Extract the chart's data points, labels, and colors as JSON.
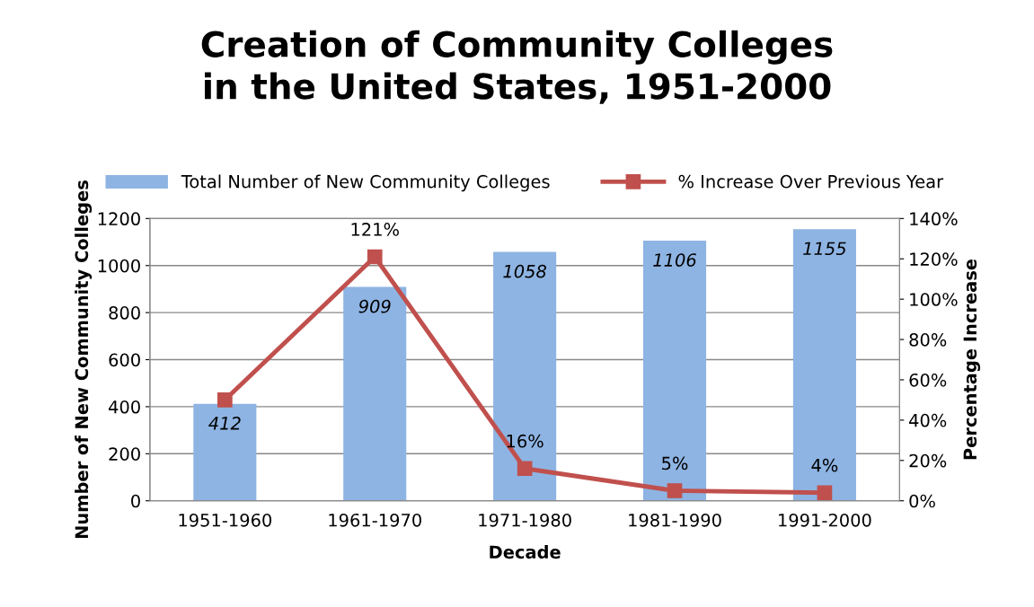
{
  "chart_data": {
    "type": "bar",
    "title": "Creation of Community Colleges\nin the United States, 1951-2000",
    "xlabel": "Decade",
    "ylabel": "Number of New Community Colleges",
    "y2label": "Percentage Increase",
    "categories": [
      "1951-1960",
      "1961-1970",
      "1971-1980",
      "1981-1990",
      "1991-2000"
    ],
    "series": [
      {
        "name": "Total Number of New Community Colleges",
        "color": "#8eb4e3",
        "values": [
          412,
          909,
          1058,
          1106,
          1155
        ],
        "value_labels": [
          "412",
          "909",
          "1058",
          "1106",
          "1155"
        ]
      },
      {
        "name": "% Increase Over Previous Year",
        "type": "line",
        "axis": "y2",
        "color": "#c0504d",
        "marker": "square",
        "values": [
          50,
          121,
          16,
          5,
          4
        ],
        "value_labels": [
          null,
          "121%",
          "16%",
          "5%",
          "4%"
        ]
      }
    ],
    "ylim": [
      0,
      1200
    ],
    "yticks": [
      0,
      200,
      400,
      600,
      800,
      1000,
      1200
    ],
    "y2lim": [
      0,
      140
    ],
    "y2ticks": [
      {
        "value": 0,
        "label": "0%"
      },
      {
        "value": 20,
        "label": "20%"
      },
      {
        "value": 40,
        "label": "40%"
      },
      {
        "value": 60,
        "label": "60%"
      },
      {
        "value": 80,
        "label": "80%"
      },
      {
        "value": 100,
        "label": "100%"
      },
      {
        "value": 120,
        "label": "120%"
      },
      {
        "value": 140,
        "label": "140%"
      }
    ],
    "grid": "y",
    "legend": "top"
  }
}
